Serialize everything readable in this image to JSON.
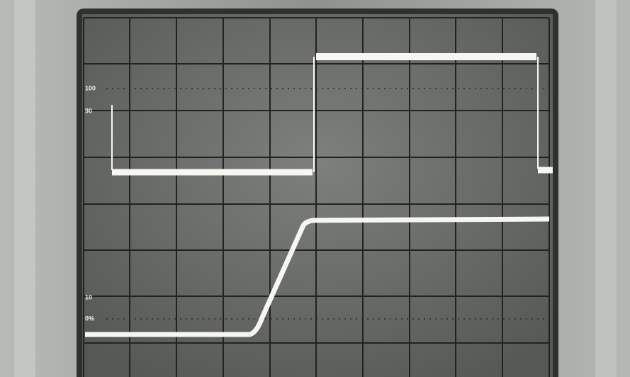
{
  "scale_labels": [
    "100",
    "90",
    "10",
    "0%"
  ]
}
